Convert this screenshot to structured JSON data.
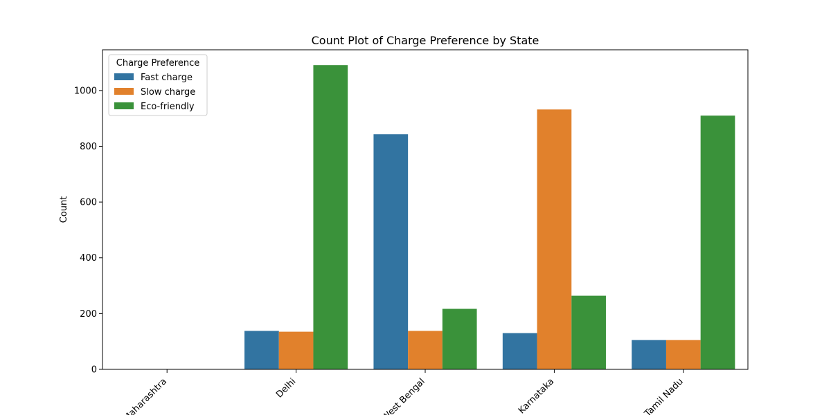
{
  "chart_data": {
    "type": "bar",
    "title": "Count Plot of Charge Preference by State",
    "xlabel": "",
    "ylabel": "Count",
    "categories": [
      "Maharashtra",
      "Delhi",
      "West Bengal",
      "Karnataka",
      "Tamil Nadu"
    ],
    "series": [
      {
        "name": "Fast charge",
        "color": "#3274a1",
        "values": [
          0,
          138,
          843,
          130,
          105
        ]
      },
      {
        "name": "Slow charge",
        "color": "#e1812c",
        "values": [
          0,
          135,
          138,
          932,
          105
        ]
      },
      {
        "name": "Eco-friendly",
        "color": "#3a923a",
        "values": [
          0,
          1091,
          217,
          264,
          910
        ]
      }
    ],
    "ylim": [
      0,
      1146
    ],
    "yticks": [
      0,
      200,
      400,
      600,
      800,
      1000
    ],
    "legend": {
      "title": "Charge Preference",
      "position": "top-left"
    },
    "grid": false
  }
}
